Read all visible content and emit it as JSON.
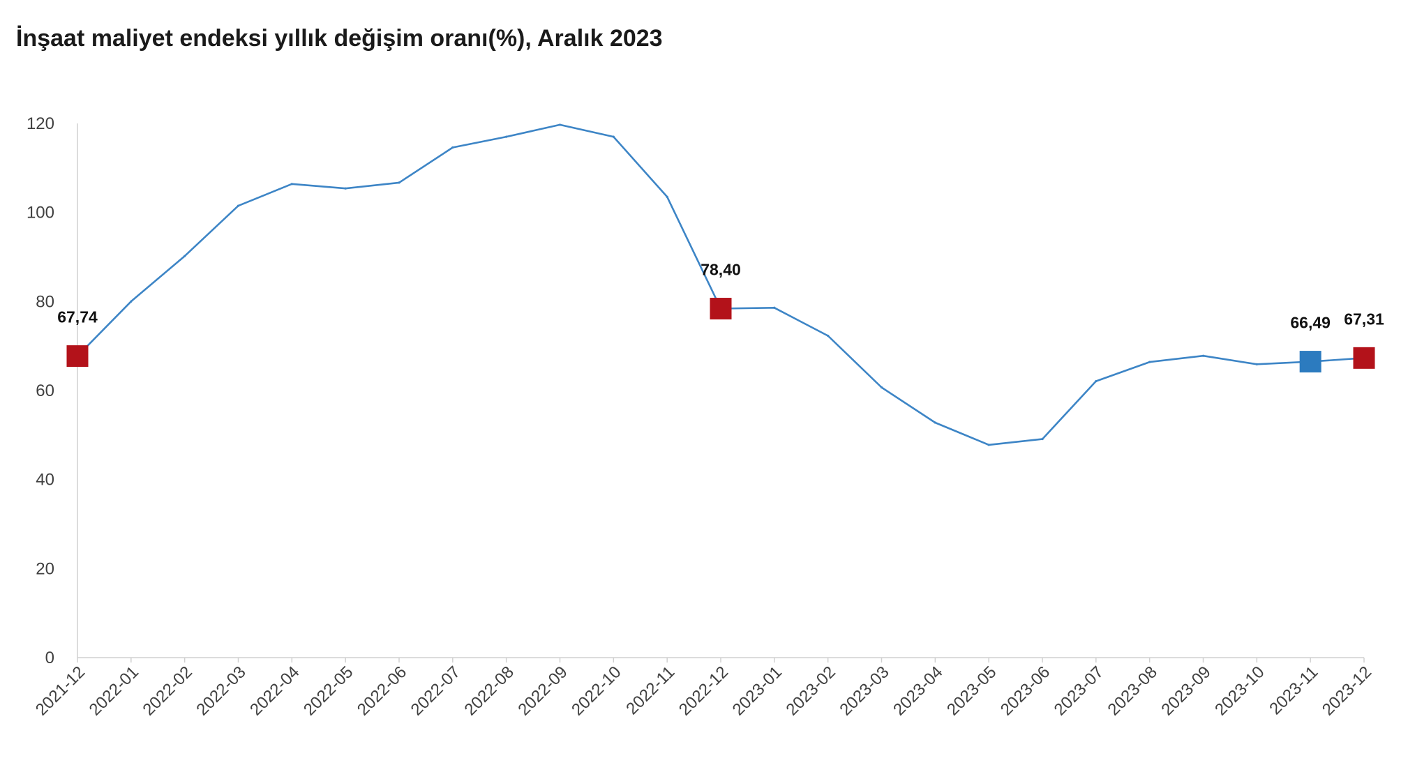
{
  "chart_data": {
    "type": "line",
    "title": "İnşaat maliyet endeksi yıllık değişim oranı(%), Aralık 2023",
    "xlabel": "",
    "ylabel": "",
    "categories": [
      "2021-12",
      "2022-01",
      "2022-02",
      "2022-03",
      "2022-04",
      "2022-05",
      "2022-06",
      "2022-07",
      "2022-08",
      "2022-09",
      "2022-10",
      "2022-11",
      "2022-12",
      "2023-01",
      "2023-02",
      "2023-03",
      "2023-04",
      "2023-05",
      "2023-06",
      "2023-07",
      "2023-08",
      "2023-09",
      "2023-10",
      "2023-11",
      "2023-12"
    ],
    "series": [
      {
        "values": [
          67.74,
          80.0,
          90.2,
          101.5,
          106.4,
          105.4,
          106.7,
          114.6,
          117.0,
          119.7,
          117.0,
          103.5,
          78.4,
          78.6,
          72.3,
          60.7,
          52.8,
          47.8,
          49.1,
          62.1,
          66.4,
          67.8,
          65.9,
          66.49,
          67.31
        ],
        "color": "#3d85c6"
      }
    ],
    "ylim": [
      0,
      120
    ],
    "yticks": [
      0,
      20,
      40,
      60,
      80,
      100,
      120
    ],
    "grid": false,
    "legend": false,
    "axis_color": "#d0d0d0",
    "highlights": [
      {
        "category": "2021-12",
        "label": "67,74",
        "color": "#b3121a"
      },
      {
        "category": "2022-12",
        "label": "78,40",
        "color": "#b3121a"
      },
      {
        "category": "2023-11",
        "label": "66,49",
        "color": "#2c7bbf"
      },
      {
        "category": "2023-12",
        "label": "67,31",
        "color": "#b3121a"
      }
    ]
  }
}
